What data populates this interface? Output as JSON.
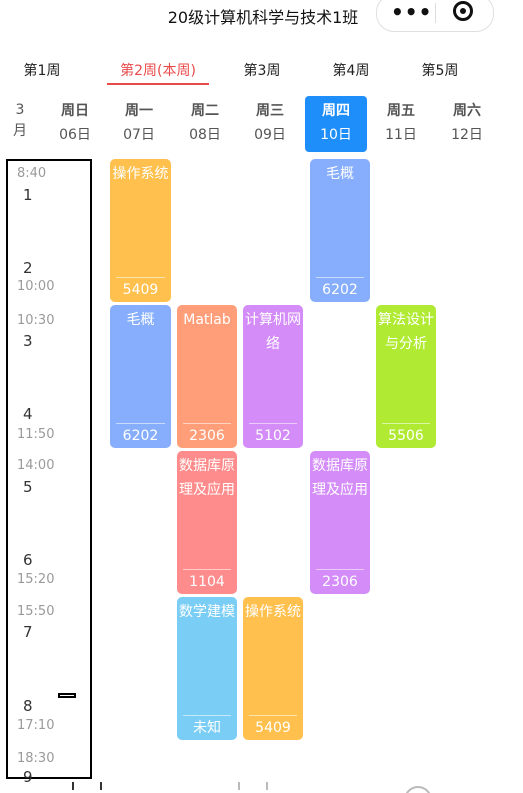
{
  "header": {
    "title": "20级计算机科学与技术1班"
  },
  "weeks": [
    {
      "label": "第1周",
      "active": false
    },
    {
      "label": "第2周(本周)",
      "active": true
    },
    {
      "label": "第3周",
      "active": false
    },
    {
      "label": "第4周",
      "active": false
    },
    {
      "label": "第5周",
      "active": false
    }
  ],
  "month": {
    "num": "3",
    "unit": "月"
  },
  "days": [
    {
      "name": "周日",
      "date": "06日",
      "today": false
    },
    {
      "name": "周一",
      "date": "07日",
      "today": false
    },
    {
      "name": "周二",
      "date": "08日",
      "today": false
    },
    {
      "name": "周三",
      "date": "09日",
      "today": false
    },
    {
      "name": "周四",
      "date": "10日",
      "today": true
    },
    {
      "name": "周五",
      "date": "11日",
      "today": false
    },
    {
      "name": "周六",
      "date": "12日",
      "today": false
    }
  ],
  "periods": [
    {
      "num": "1",
      "start": "8:40",
      "end": ""
    },
    {
      "num": "2",
      "start": "",
      "end": "10:00"
    },
    {
      "num": "3",
      "start": "10:30",
      "end": ""
    },
    {
      "num": "4",
      "start": "",
      "end": "11:50"
    },
    {
      "num": "5",
      "start": "14:00",
      "end": ""
    },
    {
      "num": "6",
      "start": "",
      "end": "15:20"
    },
    {
      "num": "7",
      "start": "15:50",
      "end": ""
    },
    {
      "num": "8",
      "start": "",
      "end": "17:10"
    },
    {
      "num": "9",
      "start": "18:30",
      "end": ""
    }
  ],
  "courses": [
    {
      "name": "操作系统",
      "room": "5409",
      "color": "#ffc04d"
    },
    {
      "name": "毛概",
      "room": "6202",
      "color": "#86aefc"
    },
    {
      "name": "毛概",
      "room": "6202",
      "color": "#86aefc"
    },
    {
      "name": "Matlab",
      "room": "2306",
      "color": "#ff9e78"
    },
    {
      "name": "计算机网络",
      "room": "5102",
      "color": "#d38cf8"
    },
    {
      "name": "算法设计与分析",
      "room": "5506",
      "color": "#b0ea32"
    },
    {
      "name": "数据库原理及应用",
      "room": "1104",
      "color": "#ff8c8c"
    },
    {
      "name": "数据库原理及应用",
      "room": "2306",
      "color": "#d38cf8"
    },
    {
      "name": "数学建模",
      "room": "未知",
      "color": "#7acdf5"
    },
    {
      "name": "操作系统",
      "room": "5409",
      "color": "#ffc04d"
    }
  ]
}
